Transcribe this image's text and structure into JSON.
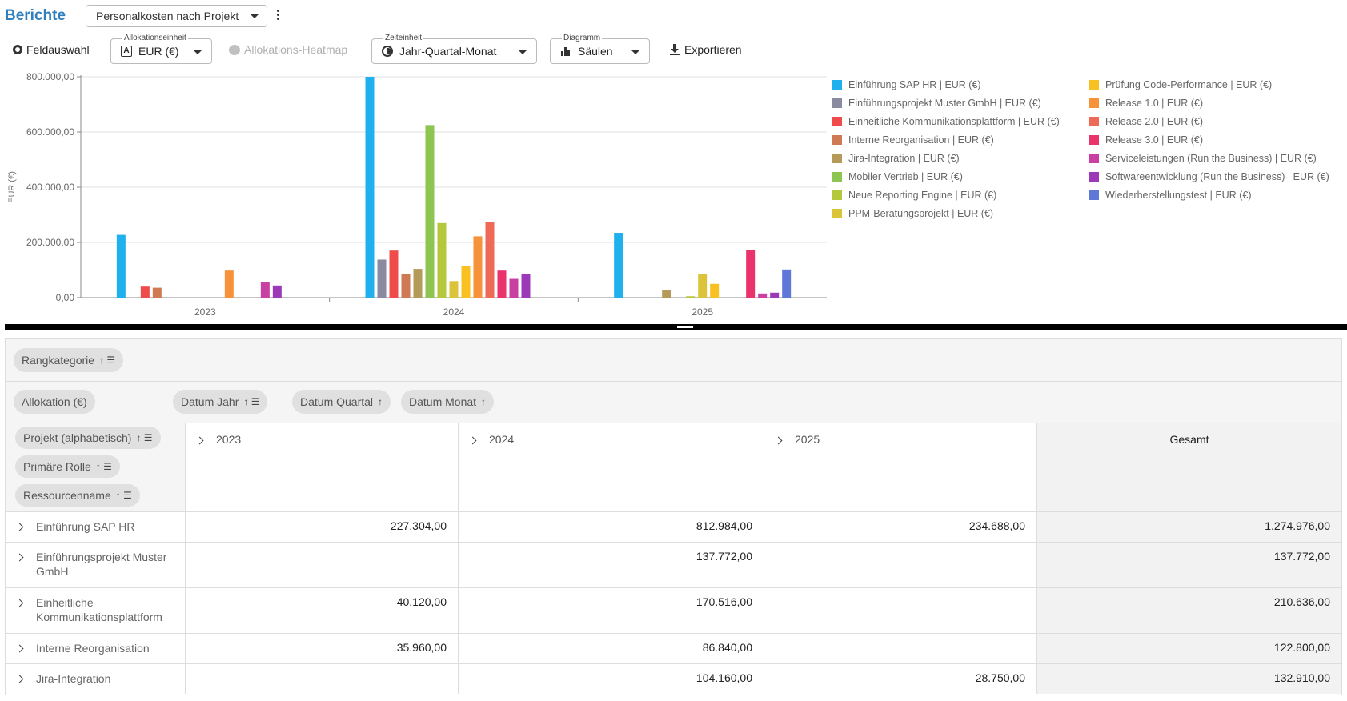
{
  "header": {
    "title": "Berichte",
    "report": "Personalkosten nach Projekt"
  },
  "toolbar": {
    "field_selection": "Feldauswahl",
    "allocation_unit_label": "Allokationseinheit",
    "allocation_unit_value": "EUR (€)",
    "heatmap": "Allokations-Heatmap",
    "time_unit_label": "Zeiteinheit",
    "time_unit_value": "Jahr-Quartal-Monat",
    "chart_label": "Diagramm",
    "chart_value": "Säulen",
    "export": "Exportieren"
  },
  "chart_data": {
    "type": "bar",
    "ylabel": "EUR (€)",
    "ylim": [
      0,
      800000
    ],
    "yticks": [
      "0,00",
      "200.000,00",
      "400.000,00",
      "600.000,00",
      "800.000,00"
    ],
    "categories": [
      "2023",
      "2024",
      "2025"
    ],
    "series": [
      {
        "name": "Einführung SAP HR | EUR (€)",
        "color": "#1fb1ee",
        "values": [
          227304,
          812984,
          234688
        ]
      },
      {
        "name": "Einführungsprojekt Muster GmbH | EUR (€)",
        "color": "#8a8aa0",
        "values": [
          0,
          137772,
          0
        ]
      },
      {
        "name": "Einheitliche Kommunikationsplattform | EUR (€)",
        "color": "#ef4b4b",
        "values": [
          40120,
          170516,
          0
        ]
      },
      {
        "name": "Interne Reorganisation | EUR (€)",
        "color": "#d07a55",
        "values": [
          35960,
          86840,
          0
        ]
      },
      {
        "name": "Jira-Integration | EUR (€)",
        "color": "#b59b5a",
        "values": [
          0,
          104160,
          28750
        ]
      },
      {
        "name": "Mobiler Vertrieb | EUR (€)",
        "color": "#8ec450",
        "values": [
          0,
          625000,
          0
        ]
      },
      {
        "name": "Neue Reporting Engine | EUR (€)",
        "color": "#b5c73a",
        "values": [
          0,
          270000,
          5000
        ]
      },
      {
        "name": "PPM-Beratungsprojekt | EUR (€)",
        "color": "#dcc43a",
        "values": [
          0,
          60000,
          85000
        ]
      },
      {
        "name": "Prüfung Code-Performance | EUR (€)",
        "color": "#f9c022",
        "values": [
          0,
          115000,
          50000
        ]
      },
      {
        "name": "Release 1.0 | EUR (€)",
        "color": "#f6923a",
        "values": [
          98000,
          222000,
          0
        ]
      },
      {
        "name": "Release 2.0 | EUR (€)",
        "color": "#ef6a56",
        "values": [
          0,
          274000,
          0
        ]
      },
      {
        "name": "Release 3.0 | EUR (€)",
        "color": "#e9336a",
        "values": [
          0,
          98000,
          173000
        ]
      },
      {
        "name": "Serviceleistungen (Run the Business) | EUR (€)",
        "color": "#c93fa2",
        "values": [
          55000,
          68000,
          15000
        ]
      },
      {
        "name": "Softwareentwicklung (Run the Business) | EUR (€)",
        "color": "#9b39b8",
        "values": [
          44000,
          84000,
          18000
        ]
      },
      {
        "name": "Wiederherstellungstest | EUR (€)",
        "color": "#5f78d8",
        "values": [
          0,
          0,
          102000
        ]
      }
    ]
  },
  "pivot": {
    "filter_chip": "Rangkategorie",
    "value_chip": "Allokation (€)",
    "column_chips": [
      "Datum Jahr",
      "Datum Quartal",
      "Datum Monat"
    ],
    "row_chips": [
      "Projekt (alphabetisch)",
      "Primäre Rolle",
      "Ressourcenname"
    ],
    "columns": [
      "2023",
      "2024",
      "2025"
    ],
    "total_label": "Gesamt",
    "rows": [
      {
        "label": "Einführung SAP HR",
        "v2023": "227.304,00",
        "v2024": "812.984,00",
        "v2025": "234.688,00",
        "total": "1.274.976,00"
      },
      {
        "label": "Einführungsprojekt Muster GmbH",
        "v2023": "",
        "v2024": "137.772,00",
        "v2025": "",
        "total": "137.772,00"
      },
      {
        "label": "Einheitliche Kommunikationsplattform",
        "v2023": "40.120,00",
        "v2024": "170.516,00",
        "v2025": "",
        "total": "210.636,00"
      },
      {
        "label": "Interne Reorganisation",
        "v2023": "35.960,00",
        "v2024": "86.840,00",
        "v2025": "",
        "total": "122.800,00"
      },
      {
        "label": "Jira-Integration",
        "v2023": "",
        "v2024": "104.160,00",
        "v2025": "28.750,00",
        "total": "132.910,00"
      }
    ]
  }
}
